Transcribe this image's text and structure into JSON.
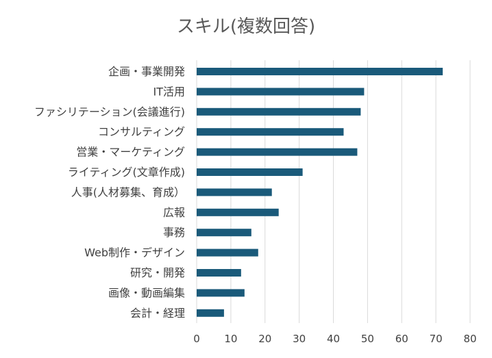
{
  "chart_data": {
    "type": "bar",
    "orientation": "horizontal",
    "title": "スキル(複数回答)",
    "xlabel": "",
    "ylabel": "",
    "categories": [
      "企画・事業開発",
      "IT活用",
      "ファシリテーション(会議進行)",
      "コンサルティング",
      "営業・マーケティング",
      "ライティング(文章作成)",
      "人事(人材募集、育成）",
      "広報",
      "事務",
      "Web制作・デザイン",
      "研究・開発",
      "画像・動画編集",
      "会計・経理"
    ],
    "values": [
      72,
      49,
      48,
      43,
      47,
      31,
      22,
      24,
      16,
      18,
      13,
      14,
      8
    ],
    "xlim": [
      0,
      80
    ],
    "xticks": [
      "0",
      "10",
      "20",
      "30",
      "40",
      "50",
      "60",
      "70",
      "80"
    ],
    "grid": "vertical",
    "legend": "none",
    "colors": {
      "bar": "#1a5a7a",
      "grid": "#d9d9d9",
      "title": "#595959",
      "label": "#404040"
    }
  }
}
